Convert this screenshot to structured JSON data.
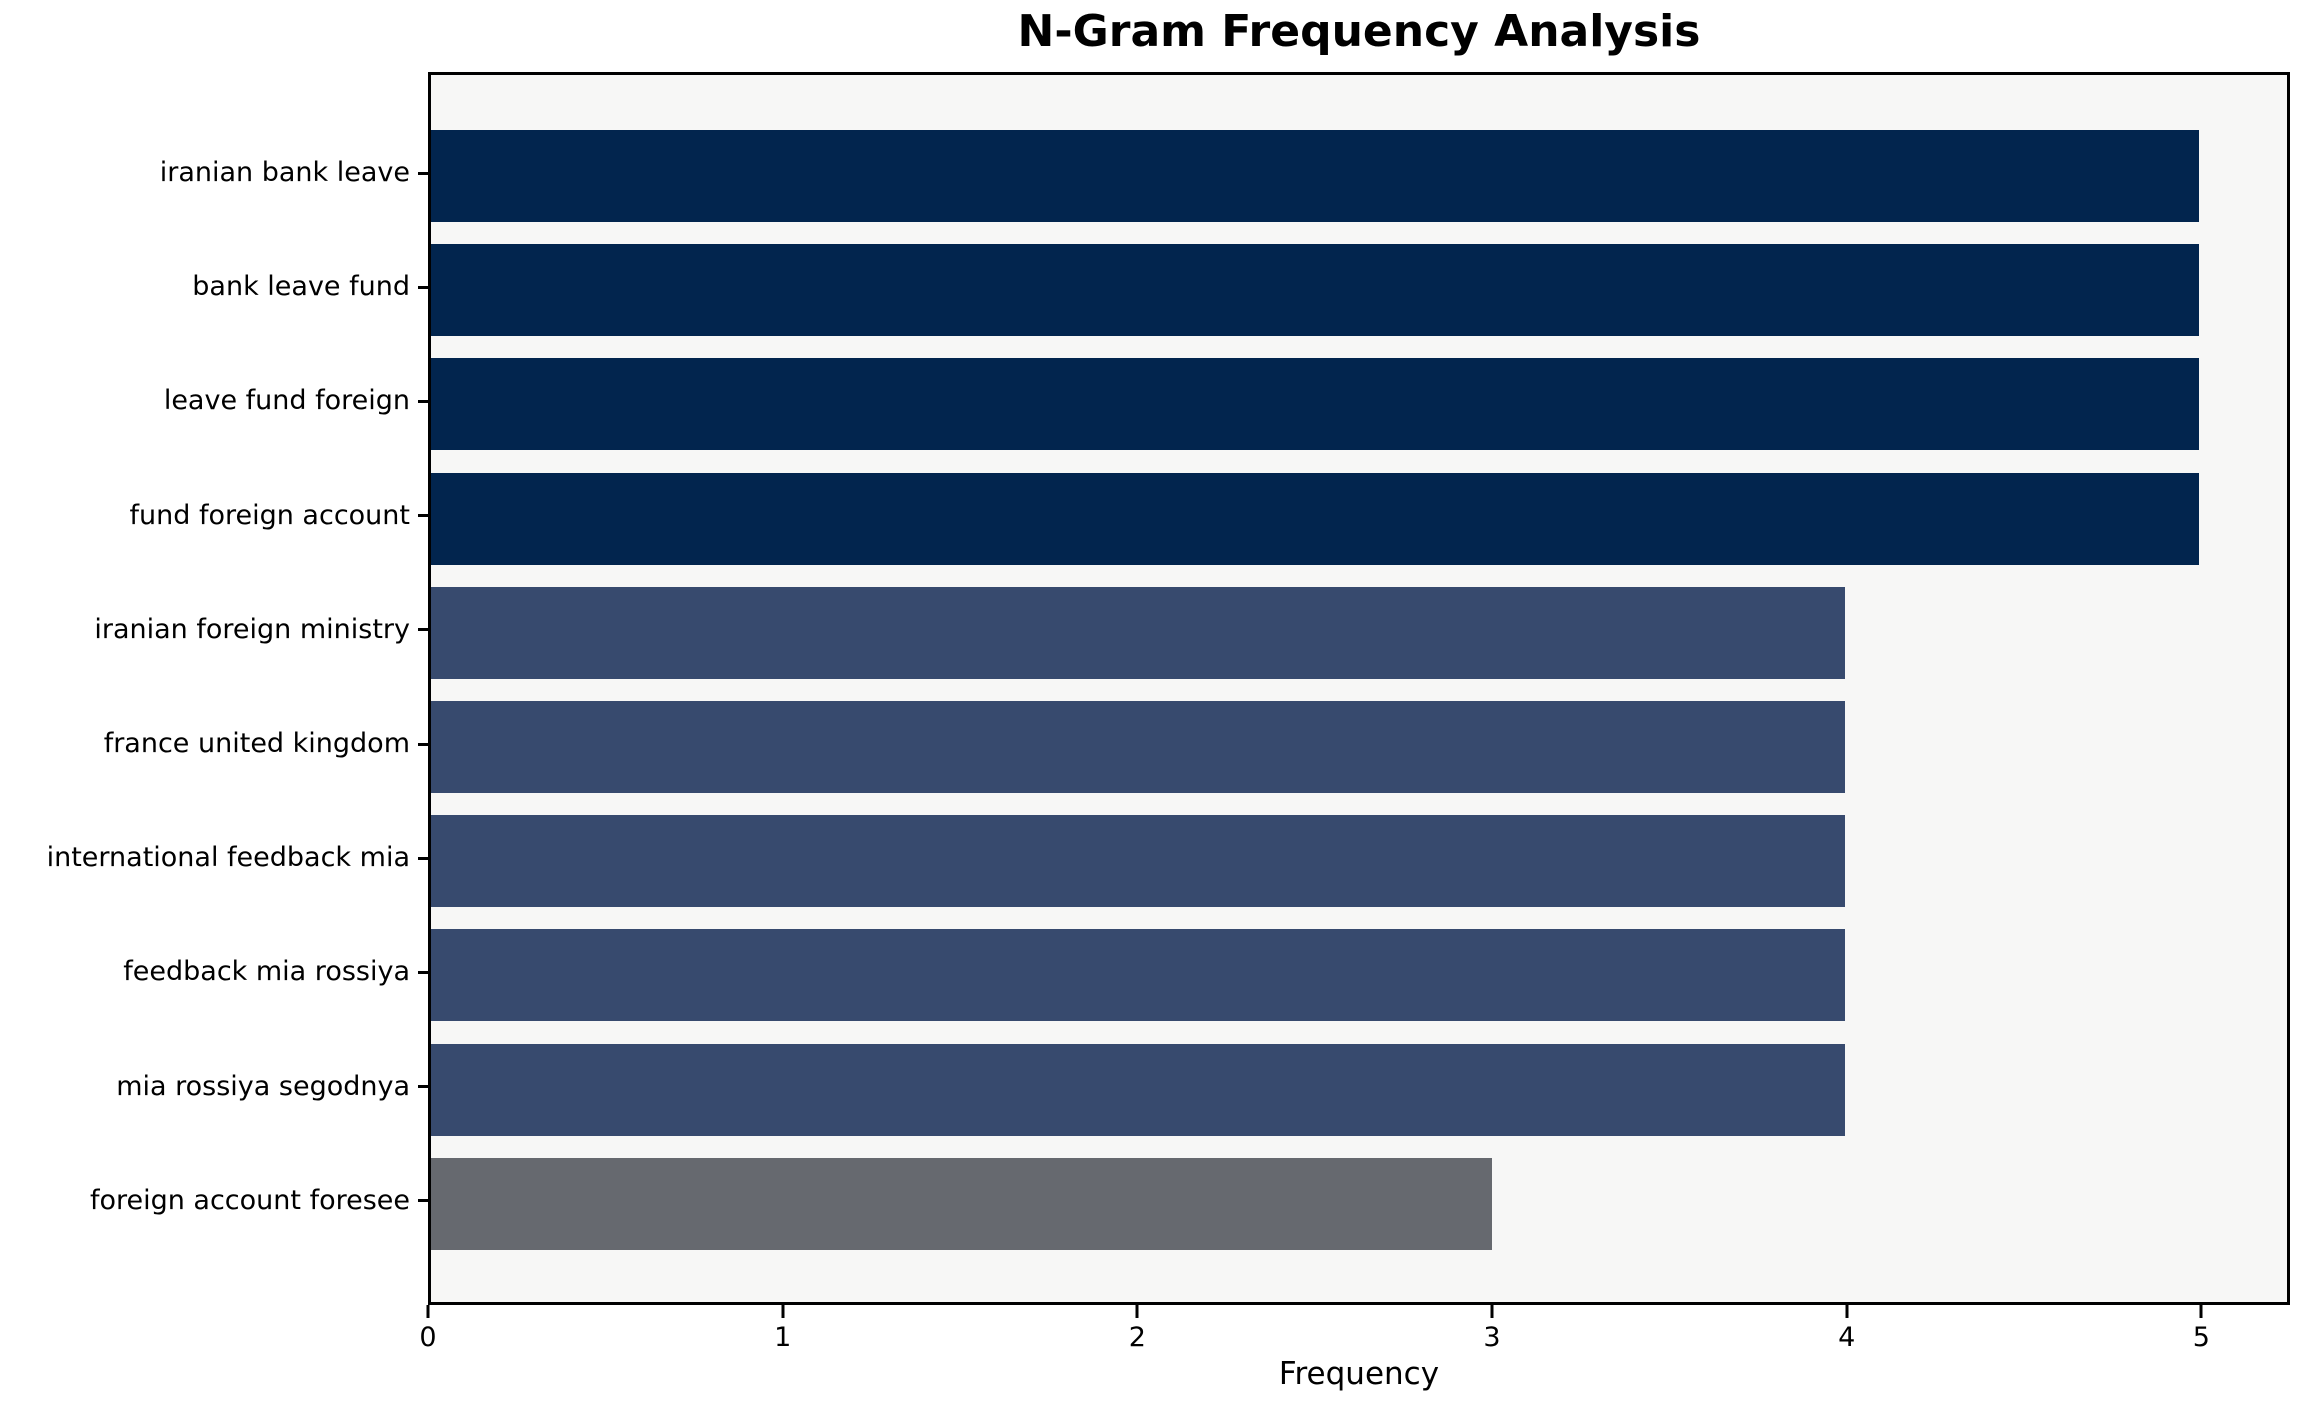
{
  "chart_data": {
    "type": "bar",
    "orientation": "horizontal",
    "title": "N-Gram Frequency Analysis",
    "xlabel": "Frequency",
    "ylabel": "",
    "categories": [
      "iranian bank leave",
      "bank leave fund",
      "leave fund foreign",
      "fund foreign account",
      "iranian foreign ministry",
      "france united kingdom",
      "international feedback mia",
      "feedback mia rossiya",
      "mia rossiya segodnya",
      "foreign account foresee"
    ],
    "values": [
      5,
      5,
      5,
      5,
      4,
      4,
      4,
      4,
      4,
      3
    ],
    "bar_colors": [
      "#02254e",
      "#02254e",
      "#02254e",
      "#02254e",
      "#374a6e",
      "#374a6e",
      "#374a6e",
      "#374a6e",
      "#374a6e",
      "#66696f"
    ],
    "xticks": [
      "0",
      "1",
      "2",
      "3",
      "4",
      "5"
    ],
    "xtick_values": [
      0,
      1,
      2,
      3,
      4,
      5
    ],
    "xlim": [
      0,
      5.25
    ],
    "grid": false,
    "legend": null,
    "plot_background": "#f7f7f6",
    "figure_background": "#ffffff",
    "axis_color": "#000000"
  }
}
